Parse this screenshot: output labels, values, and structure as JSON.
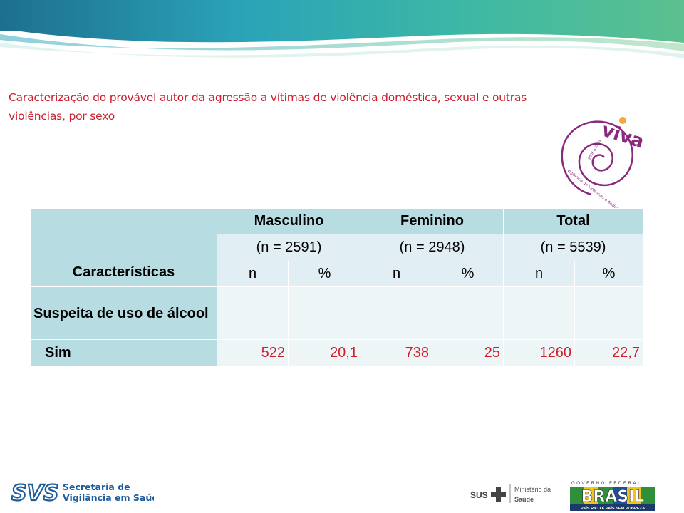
{
  "subtitle": "Caracterização do provável autor da agressão a vítimas de violência doméstica, sexual e outras violências, por sexo",
  "table": {
    "left_header": "Características",
    "groups": [
      "Masculino",
      "Feminino",
      "Total"
    ],
    "sizes": [
      "(n = 2591)",
      "(n = 2948)",
      "(n = 5539)"
    ],
    "subheads": [
      "n",
      "%",
      "n",
      "%",
      "n",
      "%"
    ],
    "section_label": "Suspeita de uso de álcool",
    "rows": [
      {
        "label": "Sim",
        "values": [
          "522",
          "20,1",
          "738",
          "25",
          "1260",
          "22,7"
        ]
      }
    ]
  },
  "logos": {
    "viva": "viva",
    "viva_small_text": "Vigilância de Violências e Acidentes",
    "viva_years": "2006 a 2009",
    "svs_line1": "Secretaria de",
    "svs_line2": "Vigilância em Saúde",
    "sus": "SUS",
    "ministerio_line1": "Ministério da",
    "ministerio_line2": "Saúde",
    "governo": "GOVERNO FEDERAL",
    "brasil": "BRASIL",
    "brasil_slogan": "PAÍS RICO É PAÍS SEM POBREZA"
  },
  "colors": {
    "header_bg": "#b7dde3",
    "row_bg": "#e1eef3",
    "value_red": "#cc1f2b",
    "subtitle_red": "#cc2030",
    "viva_purple": "#8a2a7e"
  }
}
